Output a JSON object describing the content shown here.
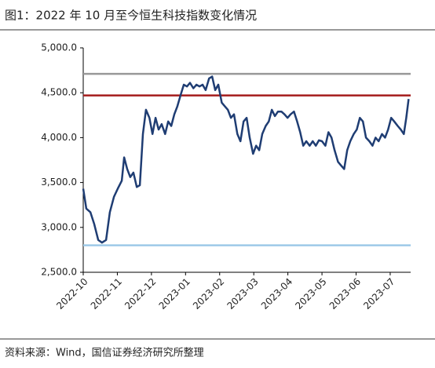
{
  "chart_data": {
    "type": "line",
    "title": "图1：2022 年 10 月至今恒生科技指数变化情况",
    "source": "资料来源：Wind，国信证券经济研究所整理",
    "x": [
      0,
      0.09,
      0.21,
      0.32,
      0.44,
      0.55,
      0.67,
      0.78,
      0.9,
      1.01,
      1.13,
      1.2,
      1.29,
      1.38,
      1.47,
      1.57,
      1.66,
      1.75,
      1.84,
      1.94,
      2.03,
      2.12,
      2.21,
      2.3,
      2.4,
      2.49,
      2.58,
      2.67,
      2.76,
      2.86,
      2.95,
      3.04,
      3.13,
      3.23,
      3.32,
      3.41,
      3.5,
      3.59,
      3.69,
      3.78,
      3.87,
      3.96,
      4.06,
      4.15,
      4.24,
      4.33,
      4.42,
      4.52,
      4.61,
      4.7,
      4.79,
      4.88,
      4.98,
      5.07,
      5.16,
      5.25,
      5.35,
      5.44,
      5.53,
      5.62,
      5.71,
      5.81,
      5.9,
      5.99,
      6.08,
      6.18,
      6.27,
      6.36,
      6.45,
      6.54,
      6.64,
      6.73,
      6.82,
      6.91,
      7.0,
      7.1,
      7.19,
      7.28,
      7.37,
      7.47,
      7.56,
      7.65,
      7.74,
      7.83,
      7.93,
      8.02,
      8.11,
      8.2,
      8.29,
      8.39,
      8.48,
      8.57,
      8.66,
      8.76,
      8.85,
      8.94,
      9.03,
      9.12,
      9.22,
      9.31,
      9.4,
      9.47,
      9.54
    ],
    "series": [
      {
        "color": "#1f3d73",
        "values": [
          3430,
          3210,
          3170,
          3040,
          2860,
          2830,
          2860,
          3170,
          3340,
          3430,
          3520,
          3780,
          3650,
          3560,
          3610,
          3450,
          3470,
          4040,
          4310,
          4220,
          4040,
          4220,
          4090,
          4150,
          4040,
          4180,
          4130,
          4260,
          4350,
          4480,
          4590,
          4570,
          4610,
          4550,
          4590,
          4570,
          4590,
          4530,
          4660,
          4680,
          4530,
          4590,
          4390,
          4350,
          4310,
          4220,
          4260,
          4040,
          3960,
          4180,
          4220,
          4000,
          3820,
          3910,
          3860,
          4040,
          4130,
          4180,
          4310,
          4240,
          4290,
          4290,
          4260,
          4220,
          4260,
          4290,
          4180,
          4060,
          3910,
          3960,
          3910,
          3960,
          3910,
          3970,
          3960,
          3910,
          4060,
          4000,
          3860,
          3730,
          3690,
          3650,
          3860,
          3960,
          4040,
          4090,
          4220,
          4180,
          4000,
          3960,
          3910,
          4000,
          3960,
          4040,
          4000,
          4090,
          4220,
          4180,
          4130,
          4090,
          4040,
          4220,
          4430
        ]
      }
    ],
    "reference_lines": [
      {
        "value": 4710,
        "color": "#999999"
      },
      {
        "value": 4470,
        "color": "#a51c1c"
      },
      {
        "value": 2800,
        "color": "#9ec9e8"
      }
    ],
    "xlim": [
      0,
      9.6
    ],
    "xticks": [
      {
        "value": 0,
        "label": "2022-10"
      },
      {
        "value": 1,
        "label": "2022-11"
      },
      {
        "value": 2,
        "label": "2022-12"
      },
      {
        "value": 3,
        "label": "2023-01"
      },
      {
        "value": 4,
        "label": "2023-02"
      },
      {
        "value": 5,
        "label": "2023-03"
      },
      {
        "value": 6,
        "label": "2023-04"
      },
      {
        "value": 7,
        "label": "2023-05"
      },
      {
        "value": 8,
        "label": "2023-06"
      },
      {
        "value": 9,
        "label": "2023-07"
      }
    ],
    "ylim": [
      2500,
      5000
    ],
    "yticks": [
      {
        "value": 2500,
        "label": "2,500.0"
      },
      {
        "value": 3000,
        "label": "3,000.0"
      },
      {
        "value": 3500,
        "label": "3,500.0"
      },
      {
        "value": 4000,
        "label": "4,000.0"
      },
      {
        "value": 4500,
        "label": "4,500.0"
      },
      {
        "value": 5000,
        "label": "5,000.0"
      }
    ]
  }
}
